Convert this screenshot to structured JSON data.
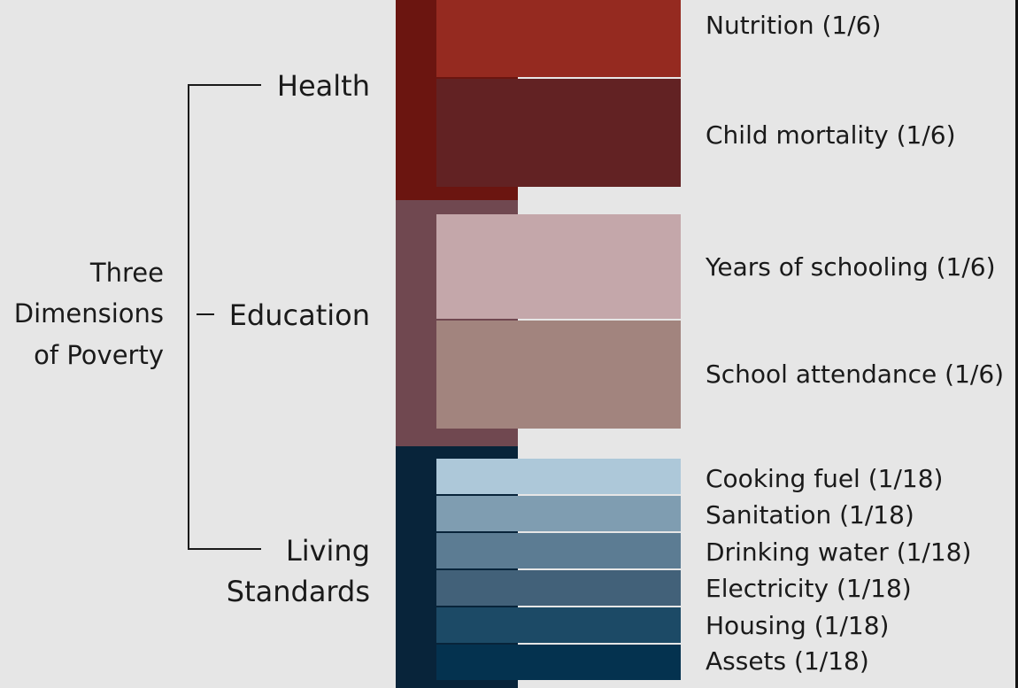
{
  "title_lines": [
    "Three",
    "Dimensions",
    "of Poverty"
  ],
  "dimensions": [
    {
      "name_lines": [
        "Health"
      ],
      "color": "#6b1510"
    },
    {
      "name_lines": [
        "Education"
      ],
      "color": "#704850"
    },
    {
      "name_lines": [
        "Living",
        "Standards"
      ],
      "color": "#08243a"
    }
  ],
  "indicators": [
    {
      "label": "Nutrition (1/6)",
      "weight": "1/6",
      "dimension": "Health",
      "color": "#952a20"
    },
    {
      "label": "Child mortality (1/6)",
      "weight": "1/6",
      "dimension": "Health",
      "color": "#622223"
    },
    {
      "label": "Years of schooling (1/6)",
      "weight": "1/6",
      "dimension": "Education",
      "color": "#c4a7aa"
    },
    {
      "label": "School attendance (1/6)",
      "weight": "1/6",
      "dimension": "Education",
      "color": "#a2847e"
    },
    {
      "label": "Cooking fuel (1/18)",
      "weight": "1/18",
      "dimension": "Living Standards",
      "color": "#adc8d9"
    },
    {
      "label": "Sanitation (1/18)",
      "weight": "1/18",
      "dimension": "Living Standards",
      "color": "#7f9db1"
    },
    {
      "label": "Drinking water (1/18)",
      "weight": "1/18",
      "dimension": "Living Standards",
      "color": "#5c7c93"
    },
    {
      "label": "Electricity (1/18)",
      "weight": "1/18",
      "dimension": "Living Standards",
      "color": "#426179"
    },
    {
      "label": "Housing (1/18)",
      "weight": "1/18",
      "dimension": "Living Standards",
      "color": "#1c4a66"
    },
    {
      "label": "Assets (1/18)",
      "weight": "1/18",
      "dimension": "Living Standards",
      "color": "#04324f"
    }
  ],
  "background": "#e6e6e6"
}
